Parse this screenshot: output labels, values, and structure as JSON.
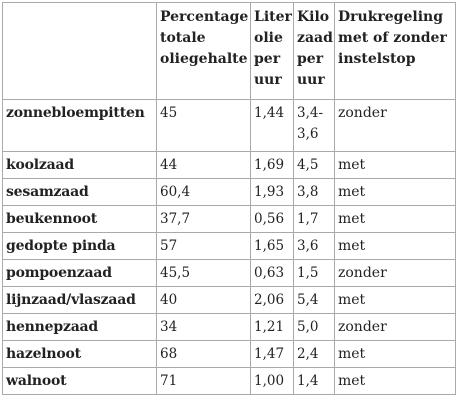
{
  "table": {
    "headers": [
      "",
      "Percentage totale oliegehalte",
      "Liter olie per uur",
      "Kilo zaad per uur",
      "Drukregeling met of zonder instelstop"
    ],
    "rows": [
      {
        "name": "zonnebloempitten",
        "oil_pct": "45",
        "liters": "1,44",
        "kilo": "3,4-3,6",
        "pressure": "zonder"
      },
      {
        "name": "koolzaad",
        "oil_pct": "44",
        "liters": "1,69",
        "kilo": "4,5",
        "pressure": "met"
      },
      {
        "name": "sesamzaad",
        "oil_pct": "60,4",
        "liters": "1,93",
        "kilo": "3,8",
        "pressure": "met"
      },
      {
        "name": "beukennoot",
        "oil_pct": "37,7",
        "liters": "0,56",
        "kilo": "1,7",
        "pressure": "met"
      },
      {
        "name": "gedopte pinda",
        "oil_pct": "57",
        "liters": "1,65",
        "kilo": "3,6",
        "pressure": "met"
      },
      {
        "name": "pompoenzaad",
        "oil_pct": "45,5",
        "liters": "0,63",
        "kilo": "1,5",
        "pressure": "zonder"
      },
      {
        "name": "lijnzaad/vlaszaad",
        "oil_pct": "40",
        "liters": "2,06",
        "kilo": "5,4",
        "pressure": "met"
      },
      {
        "name": "hennepzaad",
        "oil_pct": "34",
        "liters": "1,21",
        "kilo": "5,0",
        "pressure": "zonder"
      },
      {
        "name": "hazelnoot",
        "oil_pct": "68",
        "liters": "1,47",
        "kilo": "2,4",
        "pressure": "met"
      },
      {
        "name": "walnoot",
        "oil_pct": "71",
        "liters": "1,00",
        "kilo": "1,4",
        "pressure": "met"
      }
    ]
  }
}
